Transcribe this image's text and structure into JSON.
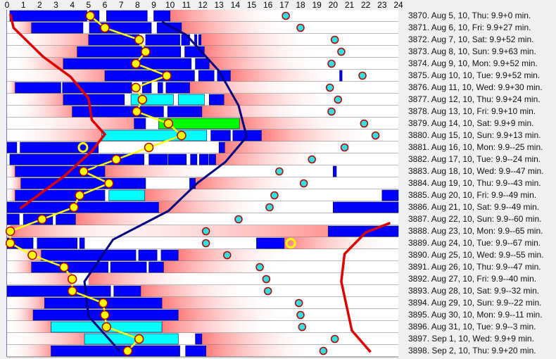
{
  "chart_data": {
    "type": "timeline",
    "x_unit": "hour of day",
    "xlim": [
      0,
      24
    ],
    "x_ticks": [
      "0",
      "1",
      "2",
      "3",
      "4",
      "5",
      "6",
      "7",
      "8",
      "9",
      "10",
      "11",
      "12",
      "13",
      "14",
      "15",
      "16",
      "17",
      "18",
      "19",
      "20",
      "21",
      "22",
      "23",
      "24"
    ],
    "colors": {
      "sleep": "#0000ff",
      "alt_sleep": "#00ffff",
      "nap": "#00ff00",
      "dot": "#ffff00",
      "dot_border": "#b00000",
      "circle": "#33e0e0",
      "red_curve": "#dd0000",
      "blue_curve": "#000080",
      "pressure": "#ff5050"
    },
    "rows": [
      {
        "label": "3870. Aug 5, 10, Thu: 9.9+0 min.",
        "blocks": [
          [
            0.17,
            4.9,
            "b"
          ],
          [
            5.05,
            5.65,
            "b"
          ],
          [
            6.1,
            8.6,
            "b"
          ],
          [
            9.0,
            10.0,
            "b"
          ]
        ],
        "dot": 5.1,
        "circle": 17.1
      },
      {
        "label": "3871. Aug 6, 10, Fri: 9.9+27 min.",
        "blocks": [
          [
            1.5,
            4.66,
            "b"
          ],
          [
            5.05,
            8.85,
            "b"
          ],
          [
            9.2,
            10.7,
            "b"
          ]
        ],
        "dot": 6.0,
        "circle": 18.0
      },
      {
        "label": "3872. Aug 7, 10, Sat: 9.9+52 min.",
        "blocks": [
          [
            5.0,
            8.1,
            "b"
          ],
          [
            8.5,
            10.6,
            "b"
          ],
          [
            10.7,
            11.2,
            "b"
          ],
          [
            11.5,
            11.65,
            "b"
          ],
          [
            11.75,
            11.9,
            "b"
          ]
        ],
        "dot": 8.1,
        "circle": 20.1
      },
      {
        "label": "3873. Aug 8, 10, Sun: 9.9+63 min.",
        "blocks": [
          [
            4.3,
            10.65,
            "b"
          ],
          [
            10.9,
            12.1,
            "b"
          ]
        ],
        "dot": 8.5,
        "circle": 20.5
      },
      {
        "label": "3874. Aug 9, 10, Mon: 9.9+52 min.",
        "blocks": [
          [
            3.45,
            11.3,
            "b"
          ],
          [
            11.55,
            12.4,
            "b"
          ]
        ],
        "dot": 7.9,
        "circle": 19.9
      },
      {
        "label": "3875. Aug 10, 10, Tue: 9.9+52 min.",
        "blocks": [
          [
            6.0,
            11.5,
            "b"
          ],
          [
            11.75,
            12.7,
            "b"
          ],
          [
            12.9,
            13.7,
            "b"
          ],
          [
            20.4,
            20.55,
            "b"
          ]
        ],
        "dot": 9.8,
        "circle": 21.8
      },
      {
        "label": "3876. Aug 11, 10, Wed: 9.9+30 min.",
        "blocks": [
          [
            0.5,
            3.3,
            "b"
          ],
          [
            3.4,
            7.65,
            "b"
          ],
          [
            8.3,
            8.85,
            "b"
          ],
          [
            9.25,
            9.55,
            "b"
          ],
          [
            9.75,
            11.2,
            "b"
          ]
        ],
        "dot": 7.9,
        "circle": 19.8
      },
      {
        "label": "3877. Aug 12, 10, Thu: 9.9+24 min.",
        "blocks": [
          [
            3.45,
            7.2,
            "b"
          ],
          [
            7.6,
            10.2,
            "c"
          ],
          [
            10.5,
            12.1,
            "c"
          ],
          [
            12.4,
            13.3,
            "b"
          ]
        ],
        "dot": 8.3,
        "circle": 20.3
      },
      {
        "label": "3878. Aug 13, 10, Fri: 9.9+10 min.",
        "blocks": [
          [
            4.0,
            9.6,
            "b"
          ],
          [
            9.85,
            11.95,
            "b"
          ]
        ],
        "dot": 7.95,
        "circle": 19.9
      },
      {
        "label": "3879. Aug 14, 10, Sat: 9.9+9 min.",
        "blocks": [
          [
            7.8,
            8.5,
            "b"
          ],
          [
            9.3,
            14.25,
            "g"
          ]
        ],
        "dot": 9.9,
        "circle": 21.9
      },
      {
        "label": "3880. Aug 15, 10, Sun: 9.9+13 min.",
        "blocks": [
          [
            5.8,
            12.25,
            "c"
          ],
          [
            12.5,
            13.7,
            "b"
          ],
          [
            13.85,
            15.6,
            "b"
          ]
        ],
        "dot": 10.7,
        "circle": 22.6
      },
      {
        "label": "3881. Aug 16, 10, Mon: 9.9--25 min.",
        "blocks": [
          [
            0.0,
            0.6,
            "b"
          ],
          [
            0.8,
            5.6,
            "b"
          ],
          [
            13.0,
            13.35,
            "b"
          ]
        ],
        "dot": 8.7,
        "circle": 20.7
      },
      {
        "label": "3882. Aug 17, 10, Tue: 9.9--24 min.",
        "blocks": [
          [
            0.17,
            8.4,
            "b"
          ],
          [
            8.7,
            9.85,
            "b"
          ],
          [
            9.9,
            11.0,
            "b"
          ],
          [
            11.25,
            11.65,
            "b"
          ],
          [
            11.8,
            12.35,
            "b"
          ],
          [
            12.4,
            12.8,
            "b"
          ]
        ],
        "dot": 6.7,
        "circle": 18.7
      },
      {
        "label": "3883. Aug 18, 10, Wed: 9.9--47 min.",
        "blocks": [
          [
            0.5,
            6.0,
            "b"
          ],
          [
            20.0,
            20.2,
            "b"
          ]
        ],
        "dot": 4.7,
        "circle": 16.7
      },
      {
        "label": "3884. Aug 19, 10, Thu: 9.9--43 min.",
        "blocks": [
          [
            0.85,
            8.5,
            "b"
          ],
          [
            11.2,
            11.55,
            "b"
          ]
        ],
        "dot": 6.25,
        "circle": 18.2
      },
      {
        "label": "3885. Aug 20, 10, Fri: 9.9--49 min.",
        "blocks": [
          [
            0.5,
            6.0,
            "b"
          ],
          [
            6.25,
            8.45,
            "c"
          ],
          [
            23.0,
            24.0,
            "b"
          ]
        ],
        "dot": 4.45,
        "circle": 16.4
      },
      {
        "label": "3886. Aug 21, 10, Sat: 9.9--49 min.",
        "blocks": [
          [
            0.0,
            9.3,
            "b"
          ],
          [
            20.0,
            24.0,
            "b"
          ]
        ],
        "dot": 4.1,
        "circle": 16.1
      },
      {
        "label": "3887. Aug 22, 10, Sun: 9.9--60 min.",
        "blocks": [
          [
            0.0,
            0.75,
            "b"
          ],
          [
            1.0,
            2.8,
            "b"
          ],
          [
            3.0,
            4.2,
            "b"
          ]
        ],
        "dot": 2.15,
        "circle": 14.2
      },
      {
        "label": "3888. Aug 23, 10, Mon: 9.9--65 min.",
        "blocks": [
          [
            19.7,
            24.0,
            "b"
          ]
        ],
        "dot": 0.2,
        "circle": 12.2
      },
      {
        "label": "3889. Aug 24, 10, Tue: 9.9--67 min.",
        "blocks": [
          [
            0.0,
            1.6,
            "b"
          ],
          [
            1.85,
            4.3,
            "b"
          ],
          [
            4.45,
            4.75,
            "b"
          ],
          [
            15.3,
            17.0,
            "b"
          ]
        ],
        "dot": 0.2,
        "circle": 12.2
      },
      {
        "label": "3890. Aug 25, 10, Wed: 9.9--55 min.",
        "blocks": [
          [
            2.1,
            7.9,
            "b"
          ],
          [
            8.07,
            9.2,
            "b"
          ],
          [
            9.45,
            10.5,
            "b"
          ]
        ],
        "dot": 1.55,
        "circle": 13.5
      },
      {
        "label": "3891. Aug 26, 10, Thu: 9.9--47 min.",
        "blocks": [
          [
            1.5,
            6.2,
            "b"
          ],
          [
            6.35,
            8.55,
            "b"
          ],
          [
            8.7,
            9.6,
            "b"
          ]
        ],
        "dot": 3.5,
        "circle": 15.5
      },
      {
        "label": "3892. Aug 27, 10, Fri: 9.9--40 min.",
        "blocks": [],
        "dot": 4.0,
        "circle": 15.9
      },
      {
        "label": "3893. Aug 28, 10, Sat: 9.9--32 min.",
        "blocks": [
          [
            0.0,
            6.35,
            "b"
          ],
          [
            6.55,
            8.2,
            "b"
          ]
        ],
        "dot": 4.0,
        "circle": 16.0
      },
      {
        "label": "3894. Aug 29, 10, Sun: 9.9--22 min.",
        "blocks": [
          [
            2.3,
            9.5,
            "b"
          ]
        ],
        "dot": 5.9,
        "circle": 17.9
      },
      {
        "label": "3895. Aug 30, 10, Mon: 9.9--11 min.",
        "blocks": [
          [
            1.6,
            10.5,
            "b"
          ]
        ],
        "dot": 6.0,
        "circle": 18.0
      },
      {
        "label": "3896. Aug 31, 10, Tue: 9.9--3 min.",
        "blocks": [
          [
            2.7,
            9.5,
            "c"
          ]
        ],
        "dot": 6.1,
        "circle": 18.1
      },
      {
        "label": "3897. Sep 1, 10, Wed: 9.9+9 min.",
        "blocks": [
          [
            4.75,
            10.5,
            "c"
          ],
          [
            11.55,
            11.95,
            "b"
          ]
        ],
        "dot": 8.1,
        "circle": 20.1
      },
      {
        "label": "3898. Sep 2, 10, Thu: 9.9+20 min.",
        "blocks": [
          [
            2.7,
            10.6,
            "b"
          ],
          [
            10.95,
            12.2,
            "b"
          ]
        ],
        "dot": 7.4,
        "circle": 19.4
      }
    ],
    "rings": [
      {
        "row": 11,
        "hour": 4.66,
        "color": "#ffff00"
      },
      {
        "row": 19,
        "hour": 17.4,
        "color": "#ffff00"
      },
      {
        "row": 13,
        "hour": 5.65,
        "color": "#0000ff"
      }
    ],
    "red_curve_left": [
      [
        0.2,
        0.35
      ],
      [
        0.4,
        1.5
      ],
      [
        2.2,
        3.9
      ],
      [
        3.9,
        5.6
      ],
      [
        5.0,
        7.4
      ],
      [
        5.2,
        9.2
      ],
      [
        6.0,
        10.4
      ],
      [
        5.2,
        11.8
      ],
      [
        3.5,
        13.9
      ],
      [
        0.8,
        16.6
      ]
    ],
    "red_curve_right": [
      [
        23.5,
        17.8
      ],
      [
        22.0,
        18.6
      ],
      [
        20.7,
        20.4
      ],
      [
        20.5,
        22.7
      ],
      [
        21.15,
        26.8
      ],
      [
        22.3,
        28.6
      ]
    ],
    "blue_curve": [
      [
        9.5,
        1.0
      ],
      [
        11.0,
        2.1
      ],
      [
        13.0,
        5.1
      ],
      [
        14.2,
        8.0
      ],
      [
        14.7,
        10.6
      ],
      [
        13.4,
        12.7
      ],
      [
        11.65,
        14.5
      ],
      [
        9.9,
        16.8
      ],
      [
        6.5,
        19.2
      ],
      [
        4.75,
        22.7
      ],
      [
        5.0,
        25.6
      ],
      [
        6.9,
        28.5
      ]
    ]
  }
}
